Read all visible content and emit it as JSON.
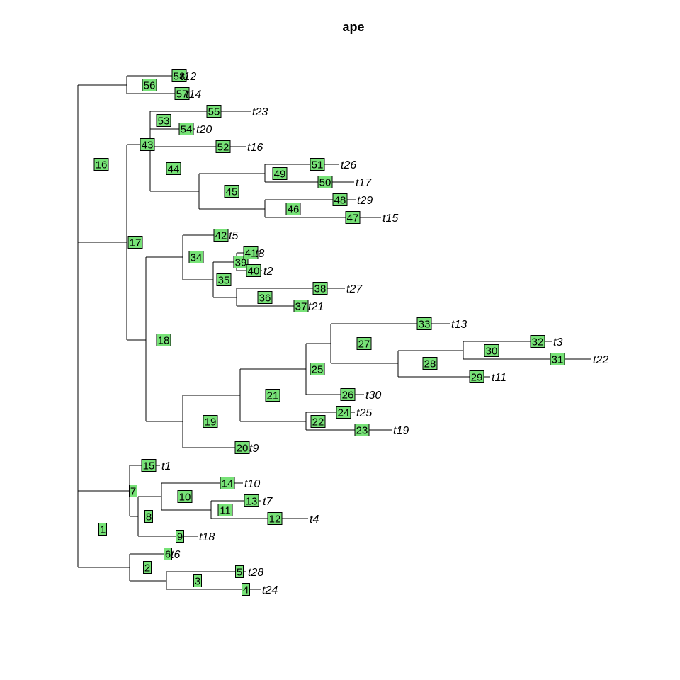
{
  "title": "ape",
  "colors": {
    "node_fill": "#77e277",
    "edge": "#000000",
    "background": "#ffffff"
  },
  "tree": {
    "nodes": [
      {
        "id": "1",
        "parent": null
      },
      {
        "id": "16",
        "parent": "1"
      },
      {
        "id": "56",
        "parent": "16"
      },
      {
        "id": "58",
        "parent": "56",
        "tip": "t12"
      },
      {
        "id": "57",
        "parent": "56",
        "tip": "t14"
      },
      {
        "id": "17",
        "parent": "16"
      },
      {
        "id": "43",
        "parent": "17"
      },
      {
        "id": "53",
        "parent": "43"
      },
      {
        "id": "55",
        "parent": "53",
        "tip": "t23"
      },
      {
        "id": "54",
        "parent": "53",
        "tip": "t20"
      },
      {
        "id": "44",
        "parent": "43"
      },
      {
        "id": "52",
        "parent": "44",
        "tip": "t16"
      },
      {
        "id": "45",
        "parent": "44"
      },
      {
        "id": "49",
        "parent": "45"
      },
      {
        "id": "51",
        "parent": "49",
        "tip": "t26"
      },
      {
        "id": "50",
        "parent": "49",
        "tip": "t17"
      },
      {
        "id": "46",
        "parent": "45"
      },
      {
        "id": "48",
        "parent": "46",
        "tip": "t29"
      },
      {
        "id": "47",
        "parent": "46",
        "tip": "t15"
      },
      {
        "id": "18",
        "parent": "17"
      },
      {
        "id": "34",
        "parent": "18"
      },
      {
        "id": "42",
        "parent": "34",
        "tip": "t5"
      },
      {
        "id": "35",
        "parent": "34"
      },
      {
        "id": "39",
        "parent": "35"
      },
      {
        "id": "41",
        "parent": "39",
        "tip": "t8"
      },
      {
        "id": "40",
        "parent": "39",
        "tip": "t2"
      },
      {
        "id": "36",
        "parent": "35"
      },
      {
        "id": "38",
        "parent": "36",
        "tip": "t27"
      },
      {
        "id": "37",
        "parent": "36",
        "tip": "t21"
      },
      {
        "id": "19",
        "parent": "18"
      },
      {
        "id": "21",
        "parent": "19"
      },
      {
        "id": "25",
        "parent": "21"
      },
      {
        "id": "27",
        "parent": "25"
      },
      {
        "id": "33",
        "parent": "27",
        "tip": "t13"
      },
      {
        "id": "28",
        "parent": "27"
      },
      {
        "id": "30",
        "parent": "28"
      },
      {
        "id": "32",
        "parent": "30",
        "tip": "t3"
      },
      {
        "id": "31",
        "parent": "30",
        "tip": "t22"
      },
      {
        "id": "29",
        "parent": "28",
        "tip": "t11"
      },
      {
        "id": "26",
        "parent": "25",
        "tip": "t30"
      },
      {
        "id": "22",
        "parent": "21"
      },
      {
        "id": "24",
        "parent": "22",
        "tip": "t25"
      },
      {
        "id": "23",
        "parent": "22",
        "tip": "t19"
      },
      {
        "id": "20",
        "parent": "19",
        "tip": "t9"
      },
      {
        "id": "7",
        "parent": "1"
      },
      {
        "id": "15",
        "parent": "7",
        "tip": "t1"
      },
      {
        "id": "8",
        "parent": "7"
      },
      {
        "id": "10",
        "parent": "8"
      },
      {
        "id": "14",
        "parent": "10",
        "tip": "t10"
      },
      {
        "id": "11",
        "parent": "10"
      },
      {
        "id": "13",
        "parent": "11",
        "tip": "t7"
      },
      {
        "id": "12",
        "parent": "11",
        "tip": "t4"
      },
      {
        "id": "9",
        "parent": "8",
        "tip": "t18"
      },
      {
        "id": "2",
        "parent": "1"
      },
      {
        "id": "6",
        "parent": "2",
        "tip": "t6"
      },
      {
        "id": "3",
        "parent": "2"
      },
      {
        "id": "5",
        "parent": "3",
        "tip": "t28"
      },
      {
        "id": "4",
        "parent": "3",
        "tip": "t24"
      }
    ]
  }
}
